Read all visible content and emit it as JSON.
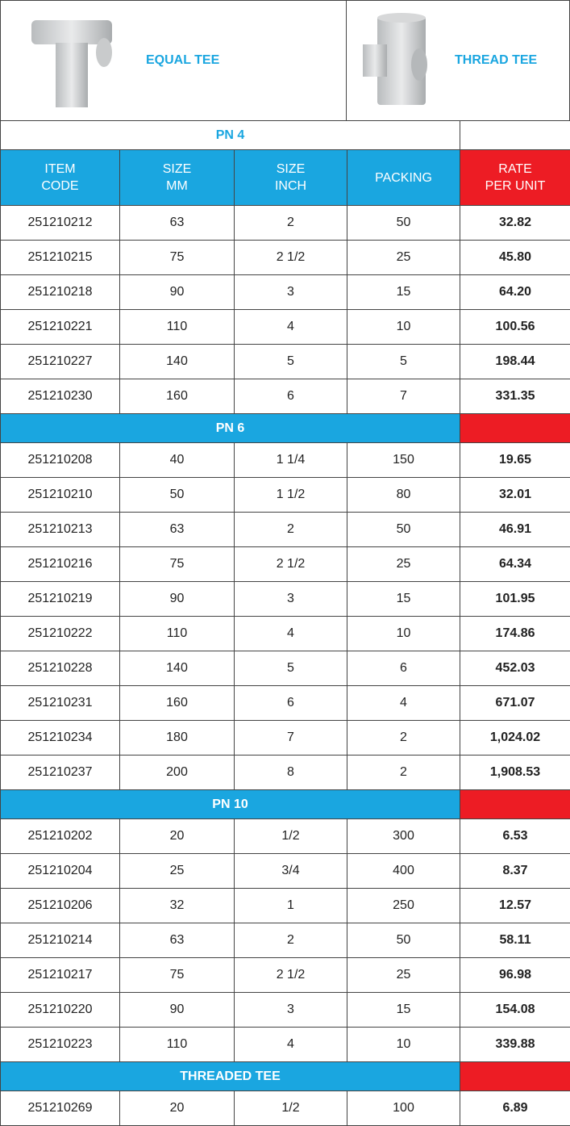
{
  "header": {
    "items": [
      {
        "label": "EQUAL TEE"
      },
      {
        "label": "THREAD TEE"
      }
    ]
  },
  "table": {
    "columns": [
      [
        "ITEM",
        "CODE"
      ],
      [
        "SIZE",
        "MM"
      ],
      [
        "SIZE",
        "INCH"
      ],
      [
        "PACKING"
      ],
      [
        "RATE",
        "PER UNIT"
      ]
    ],
    "sections": [
      {
        "title": "PN 4",
        "rows": [
          [
            "251210212",
            "63",
            "2",
            "50",
            "32.82"
          ],
          [
            "251210215",
            "75",
            "2 1/2",
            "25",
            "45.80"
          ],
          [
            "251210218",
            "90",
            "3",
            "15",
            "64.20"
          ],
          [
            "251210221",
            "110",
            "4",
            "10",
            "100.56"
          ],
          [
            "251210227",
            "140",
            "5",
            "5",
            "198.44"
          ],
          [
            "251210230",
            "160",
            "6",
            "7",
            "331.35"
          ]
        ]
      },
      {
        "title": "PN 6",
        "rows": [
          [
            "251210208",
            "40",
            "1 1/4",
            "150",
            "19.65"
          ],
          [
            "251210210",
            "50",
            "1 1/2",
            "80",
            "32.01"
          ],
          [
            "251210213",
            "63",
            "2",
            "50",
            "46.91"
          ],
          [
            "251210216",
            "75",
            "2 1/2",
            "25",
            "64.34"
          ],
          [
            "251210219",
            "90",
            "3",
            "15",
            "101.95"
          ],
          [
            "251210222",
            "110",
            "4",
            "10",
            "174.86"
          ],
          [
            "251210228",
            "140",
            "5",
            "6",
            "452.03"
          ],
          [
            "251210231",
            "160",
            "6",
            "4",
            "671.07"
          ],
          [
            "251210234",
            "180",
            "7",
            "2",
            "1,024.02"
          ],
          [
            "251210237",
            "200",
            "8",
            "2",
            "1,908.53"
          ]
        ]
      },
      {
        "title": "PN 10",
        "rows": [
          [
            "251210202",
            "20",
            "1/2",
            "300",
            "6.53"
          ],
          [
            "251210204",
            "25",
            "3/4",
            "400",
            "8.37"
          ],
          [
            "251210206",
            "32",
            "1",
            "250",
            "12.57"
          ],
          [
            "251210214",
            "63",
            "2",
            "50",
            "58.11"
          ],
          [
            "251210217",
            "75",
            "2 1/2",
            "25",
            "96.98"
          ],
          [
            "251210220",
            "90",
            "3",
            "15",
            "154.08"
          ],
          [
            "251210223",
            "110",
            "4",
            "10",
            "339.88"
          ]
        ]
      },
      {
        "title": "THREADED TEE",
        "rows": [
          [
            "251210269",
            "20",
            "1/2",
            "100",
            "6.89"
          ]
        ]
      }
    ]
  }
}
